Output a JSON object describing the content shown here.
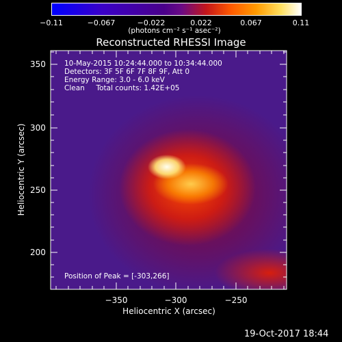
{
  "colorbar": {
    "ticks": [
      "−0.11",
      "−0.067",
      "−0.022",
      "0.022",
      "0.067",
      "0.11"
    ],
    "units": "(photons cm⁻² s⁻¹ asec⁻²)"
  },
  "plot": {
    "title": "Reconstructed RHESSI Image",
    "info_lines": [
      "10-May-2015 10:24:44.000 to 10:34:44.000",
      "Detectors: 3F 5F 6F 7F 8F 9F, Att 0",
      "Energy Range: 3.0 - 6.0 keV",
      "Clean     Total counts: 1.42E+05"
    ],
    "peak_text": "Position of Peak = [-303,266]",
    "xlabel": "Heliocentric X (arcsec)",
    "ylabel": "Heliocentric Y (arcsec)",
    "xticks": [
      "−350",
      "−300",
      "−250"
    ],
    "yticks": [
      "350",
      "300",
      "250",
      "200"
    ]
  },
  "footer": {
    "timestamp": "19-Oct-2017 18:44"
  }
}
